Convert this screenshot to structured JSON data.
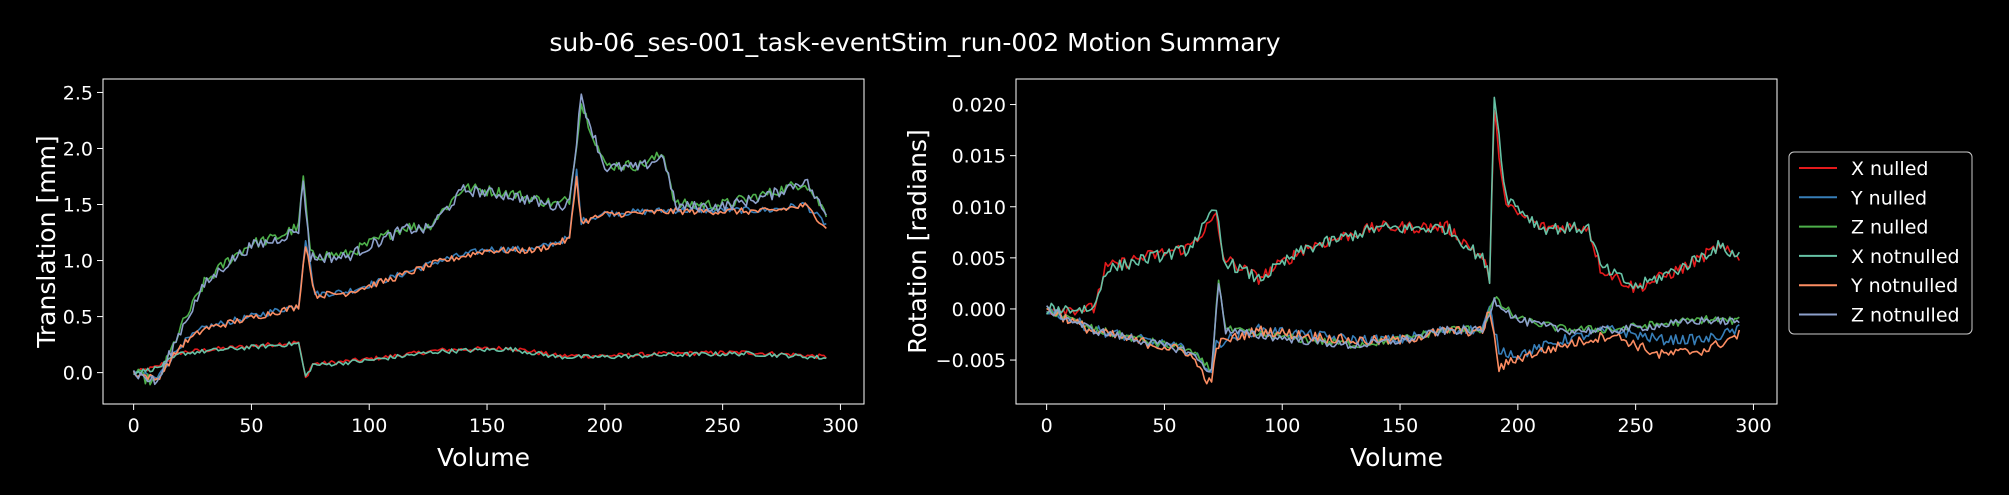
{
  "figure": {
    "title": "sub-06_ses-001_task-eventStim_run-002 Motion Summary"
  },
  "colors": {
    "background": "#000000",
    "axis": "#ffffff",
    "series": [
      "#e41a1c",
      "#377eb8",
      "#4daf4a",
      "#66c2a5",
      "#fc8d62",
      "#8da0cb"
    ]
  },
  "chart_data": [
    {
      "type": "line",
      "xlabel": "Volume",
      "ylabel": "Translation [mm]",
      "xlim": [
        -13,
        310
      ],
      "ylim": [
        -0.28,
        2.62
      ],
      "xticks": [
        0,
        50,
        100,
        150,
        200,
        250,
        300
      ],
      "xtick_labels": [
        "0",
        "50",
        "100",
        "150",
        "200",
        "250",
        "300"
      ],
      "yticks": [
        0.0,
        0.5,
        1.0,
        1.5,
        2.0,
        2.5
      ],
      "ytick_labels": [
        "0.0",
        "0.5",
        "1.0",
        "1.5",
        "2.0",
        "2.5"
      ],
      "x_range": [
        0,
        294
      ],
      "series": [
        {
          "name": "X nulled",
          "keyx": [
            0,
            10,
            20,
            40,
            70,
            73,
            76,
            80,
            100,
            130,
            160,
            180,
            200,
            230,
            260,
            280,
            294
          ],
          "keyy": [
            0.0,
            0.05,
            0.18,
            0.22,
            0.27,
            -0.05,
            0.08,
            0.08,
            0.12,
            0.2,
            0.22,
            0.15,
            0.15,
            0.17,
            0.18,
            0.16,
            0.14
          ],
          "noise": 0.02
        },
        {
          "name": "Y nulled",
          "keyx": [
            0,
            10,
            20,
            30,
            40,
            60,
            70,
            73,
            77,
            90,
            110,
            130,
            150,
            170,
            185,
            188,
            190,
            200,
            230,
            250,
            270,
            285,
            294
          ],
          "keyy": [
            0.0,
            -0.05,
            0.25,
            0.4,
            0.45,
            0.55,
            0.6,
            1.2,
            0.7,
            0.72,
            0.85,
            1.0,
            1.1,
            1.1,
            1.2,
            1.8,
            1.35,
            1.42,
            1.45,
            1.45,
            1.45,
            1.5,
            1.32
          ],
          "noise": 0.03
        },
        {
          "name": "Z nulled",
          "keyx": [
            0,
            10,
            20,
            30,
            40,
            50,
            60,
            70,
            72,
            75,
            90,
            100,
            115,
            125,
            140,
            160,
            180,
            185,
            190,
            200,
            215,
            225,
            230,
            250,
            270,
            285,
            294
          ],
          "keyy": [
            0.0,
            -0.1,
            0.4,
            0.8,
            1.0,
            1.15,
            1.2,
            1.3,
            1.75,
            1.05,
            1.05,
            1.15,
            1.3,
            1.3,
            1.65,
            1.6,
            1.5,
            1.55,
            2.4,
            1.85,
            1.85,
            1.95,
            1.5,
            1.5,
            1.6,
            1.7,
            1.42
          ],
          "noise": 0.05
        },
        {
          "name": "X notnulled",
          "keyx": [
            0,
            10,
            20,
            40,
            70,
            73,
            76,
            80,
            100,
            130,
            160,
            180,
            200,
            230,
            260,
            280,
            294
          ],
          "keyy": [
            0.0,
            0.04,
            0.17,
            0.21,
            0.26,
            -0.04,
            0.07,
            0.07,
            0.11,
            0.19,
            0.21,
            0.14,
            0.14,
            0.16,
            0.17,
            0.15,
            0.13
          ],
          "noise": 0.02
        },
        {
          "name": "Y notnulled",
          "keyx": [
            0,
            10,
            20,
            30,
            40,
            60,
            70,
            73,
            77,
            90,
            110,
            130,
            150,
            170,
            185,
            188,
            190,
            200,
            230,
            250,
            270,
            285,
            294
          ],
          "keyy": [
            0.0,
            -0.06,
            0.24,
            0.39,
            0.44,
            0.54,
            0.59,
            1.15,
            0.69,
            0.71,
            0.84,
            0.99,
            1.09,
            1.09,
            1.19,
            1.75,
            1.34,
            1.41,
            1.44,
            1.44,
            1.44,
            1.49,
            1.3
          ],
          "noise": 0.03
        },
        {
          "name": "Z notnulled",
          "keyx": [
            0,
            10,
            20,
            30,
            40,
            50,
            60,
            70,
            72,
            75,
            90,
            100,
            115,
            125,
            140,
            160,
            180,
            185,
            190,
            200,
            215,
            225,
            230,
            250,
            270,
            285,
            294
          ],
          "keyy": [
            0.0,
            -0.09,
            0.38,
            0.78,
            0.98,
            1.13,
            1.18,
            1.28,
            1.72,
            1.03,
            1.03,
            1.13,
            1.28,
            1.28,
            1.63,
            1.58,
            1.48,
            1.53,
            2.45,
            1.83,
            1.83,
            1.93,
            1.48,
            1.48,
            1.58,
            1.72,
            1.4
          ],
          "noise": 0.05
        }
      ]
    },
    {
      "type": "line",
      "xlabel": "Volume",
      "ylabel": "Rotation [radians]",
      "xlim": [
        -13,
        310
      ],
      "ylim": [
        -0.0093,
        0.0225
      ],
      "xticks": [
        0,
        50,
        100,
        150,
        200,
        250,
        300
      ],
      "xtick_labels": [
        "0",
        "50",
        "100",
        "150",
        "200",
        "250",
        "300"
      ],
      "yticks": [
        -0.005,
        0.0,
        0.005,
        0.01,
        0.015,
        0.02
      ],
      "ytick_labels": [
        "−0.005",
        "0.000",
        "0.005",
        "0.010",
        "0.015",
        "0.020"
      ],
      "x_range": [
        0,
        294
      ],
      "series": [
        {
          "name": "X nulled",
          "keyx": [
            0,
            20,
            25,
            40,
            60,
            72,
            75,
            90,
            110,
            140,
            170,
            185,
            188,
            190,
            195,
            210,
            230,
            235,
            250,
            270,
            285,
            294
          ],
          "keyy": [
            0.0,
            0.0,
            0.004,
            0.005,
            0.006,
            0.009,
            0.005,
            0.003,
            0.006,
            0.008,
            0.008,
            0.005,
            0.003,
            0.019,
            0.01,
            0.008,
            0.008,
            0.004,
            0.002,
            0.004,
            0.006,
            0.005
          ],
          "noise": 0.0006
        },
        {
          "name": "Y nulled",
          "keyx": [
            0,
            20,
            40,
            60,
            70,
            72,
            76,
            90,
            110,
            130,
            150,
            170,
            185,
            188,
            192,
            200,
            220,
            240,
            260,
            280,
            294
          ],
          "keyy": [
            0.0,
            -0.002,
            -0.003,
            -0.004,
            -0.006,
            -0.0035,
            -0.003,
            -0.002,
            -0.0025,
            -0.003,
            -0.003,
            -0.002,
            -0.002,
            0.0,
            -0.004,
            -0.0045,
            -0.003,
            -0.002,
            -0.003,
            -0.003,
            -0.002
          ],
          "noise": 0.0005
        },
        {
          "name": "Z nulled",
          "keyx": [
            0,
            20,
            40,
            60,
            70,
            73,
            76,
            90,
            110,
            130,
            150,
            170,
            185,
            190,
            200,
            220,
            240,
            260,
            280,
            294
          ],
          "keyy": [
            0.0,
            -0.002,
            -0.003,
            -0.004,
            -0.006,
            0.003,
            -0.002,
            -0.0025,
            -0.003,
            -0.0035,
            -0.003,
            -0.002,
            -0.002,
            0.001,
            -0.001,
            -0.002,
            -0.002,
            -0.0015,
            -0.001,
            -0.0012
          ],
          "noise": 0.0004
        },
        {
          "name": "X notnulled",
          "keyx": [
            0,
            20,
            25,
            40,
            60,
            72,
            75,
            90,
            110,
            140,
            170,
            185,
            188,
            190,
            195,
            210,
            230,
            235,
            250,
            270,
            285,
            294
          ],
          "keyy": [
            0.0,
            0.0,
            0.0038,
            0.0048,
            0.0058,
            0.0098,
            0.0048,
            0.0029,
            0.0059,
            0.0079,
            0.0079,
            0.0049,
            0.0031,
            0.021,
            0.011,
            0.0079,
            0.0079,
            0.0042,
            0.0021,
            0.0041,
            0.0061,
            0.0052
          ],
          "noise": 0.0006
        },
        {
          "name": "Y notnulled",
          "keyx": [
            0,
            20,
            40,
            60,
            70,
            72,
            76,
            90,
            110,
            130,
            150,
            170,
            185,
            188,
            192,
            200,
            220,
            240,
            260,
            280,
            294
          ],
          "keyy": [
            0.0,
            -0.0022,
            -0.0032,
            -0.0042,
            -0.0075,
            -0.0036,
            -0.0031,
            -0.0021,
            -0.0026,
            -0.0031,
            -0.0031,
            -0.0021,
            -0.0022,
            0.0,
            -0.0058,
            -0.0048,
            -0.0035,
            -0.0025,
            -0.0045,
            -0.004,
            -0.0025
          ],
          "noise": 0.0005
        },
        {
          "name": "Z notnulled",
          "keyx": [
            0,
            20,
            40,
            60,
            70,
            73,
            76,
            90,
            110,
            130,
            150,
            170,
            185,
            190,
            200,
            220,
            240,
            260,
            280,
            294
          ],
          "keyy": [
            0.0,
            -0.0021,
            -0.0031,
            -0.0041,
            -0.0062,
            0.0028,
            -0.0021,
            -0.0026,
            -0.0031,
            -0.0036,
            -0.0031,
            -0.0021,
            -0.0021,
            0.0009,
            -0.0011,
            -0.0021,
            -0.0021,
            -0.0016,
            -0.0011,
            -0.0013
          ],
          "noise": 0.0004
        }
      ]
    }
  ]
}
